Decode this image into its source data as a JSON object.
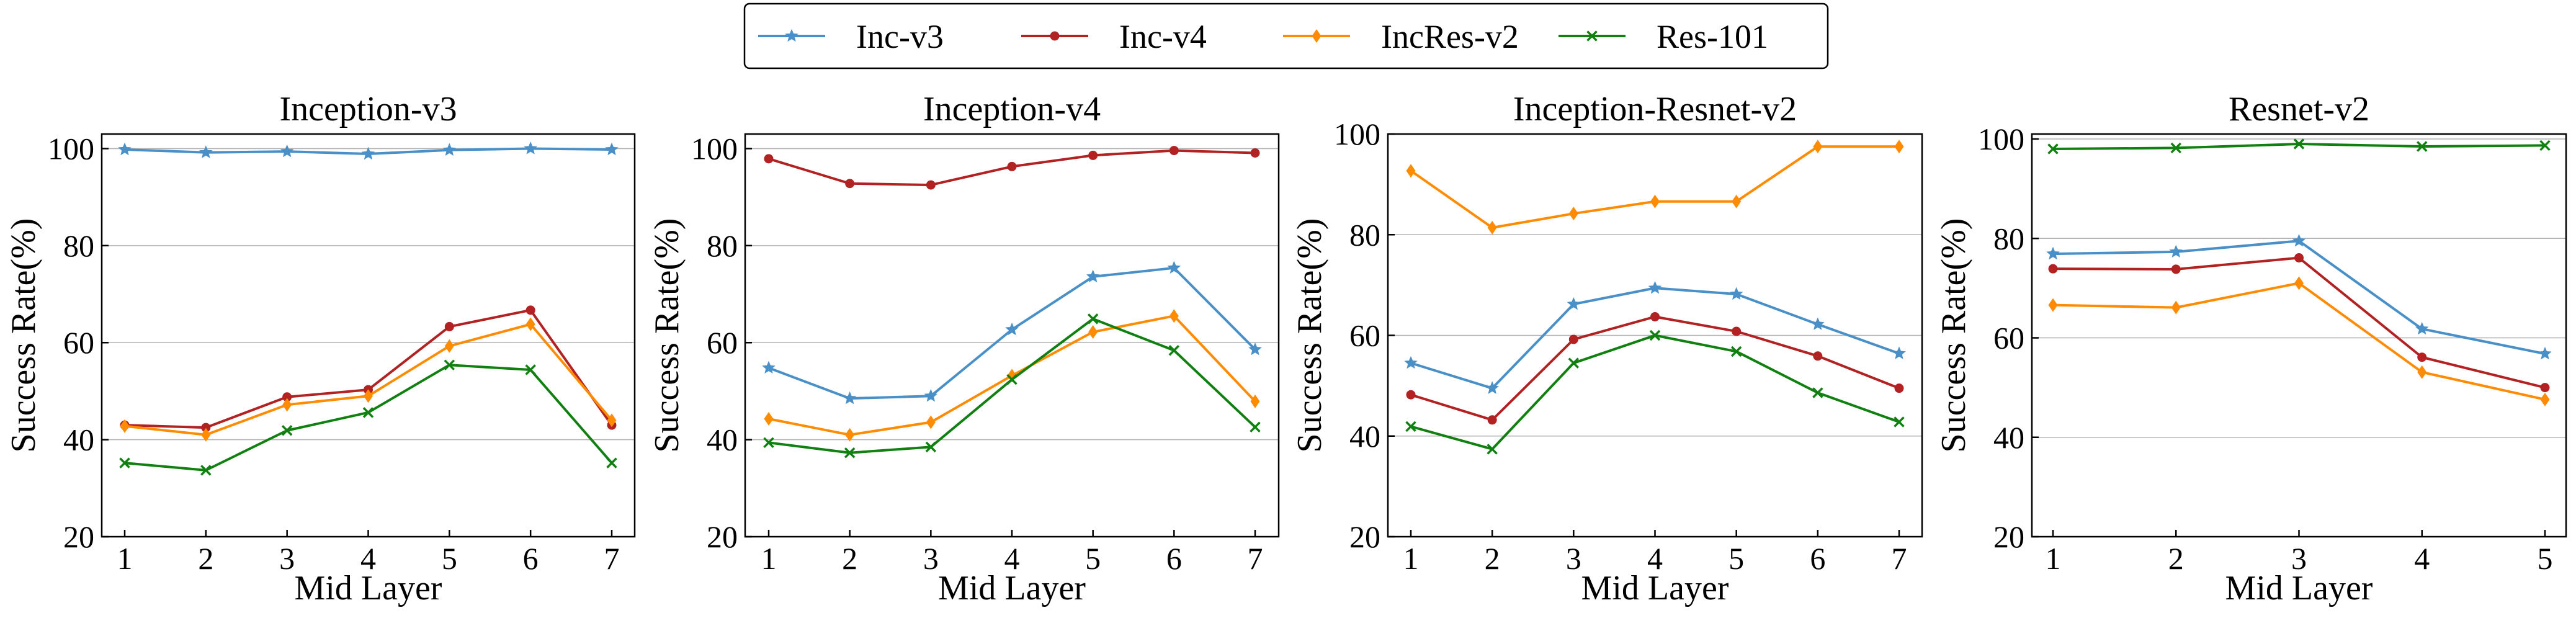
{
  "legend": {
    "entries": [
      {
        "name": "Inc-v3",
        "color": "#4a90c8",
        "marker": "star"
      },
      {
        "name": "Inc-v4",
        "color": "#b22222",
        "marker": "circle"
      },
      {
        "name": "IncRes-v2",
        "color": "#ff8c00",
        "marker": "diamond"
      },
      {
        "name": "Res-101",
        "color": "#108010",
        "marker": "x"
      }
    ]
  },
  "chart_data": [
    {
      "type": "line",
      "title": "Inception-v3",
      "xlabel": "Mid Layer",
      "ylabel": "Success Rate(%)",
      "x": [
        1,
        2,
        3,
        4,
        5,
        6,
        7
      ],
      "ylim": [
        20,
        103
      ],
      "yticks": [
        20,
        40,
        60,
        80,
        100
      ],
      "grid": "horizontal",
      "series": [
        {
          "name": "Inc-v3",
          "values": [
            99.8,
            99.2,
            99.4,
            98.9,
            99.7,
            100.0,
            99.8
          ]
        },
        {
          "name": "Inc-v4",
          "values": [
            43.0,
            42.5,
            48.8,
            50.3,
            63.3,
            66.7,
            43.0
          ]
        },
        {
          "name": "IncRes-v2",
          "values": [
            42.8,
            41.0,
            47.2,
            49.0,
            59.3,
            63.8,
            44.0
          ]
        },
        {
          "name": "Res-101",
          "values": [
            35.2,
            33.7,
            41.9,
            45.6,
            55.4,
            54.4,
            35.2
          ]
        }
      ]
    },
    {
      "type": "line",
      "title": "Inception-v4",
      "xlabel": "Mid Layer",
      "ylabel": "Success Rate(%)",
      "x": [
        1,
        2,
        3,
        4,
        5,
        6,
        7
      ],
      "ylim": [
        20,
        103
      ],
      "yticks": [
        20,
        40,
        60,
        80,
        100
      ],
      "grid": "horizontal",
      "series": [
        {
          "name": "Inc-v3",
          "values": [
            54.8,
            48.5,
            49.0,
            62.7,
            73.6,
            75.4,
            58.6
          ]
        },
        {
          "name": "Inc-v4",
          "values": [
            97.9,
            92.8,
            92.5,
            96.3,
            98.6,
            99.6,
            99.1
          ]
        },
        {
          "name": "IncRes-v2",
          "values": [
            44.3,
            41.0,
            43.6,
            53.2,
            62.2,
            65.5,
            47.9
          ]
        },
        {
          "name": "Res-101",
          "values": [
            39.4,
            37.3,
            38.5,
            52.4,
            64.9,
            58.4,
            42.6
          ]
        }
      ]
    },
    {
      "type": "line",
      "title": "Inception-Resnet-v2",
      "xlabel": "Mid Layer",
      "ylabel": "Success Rate(%)",
      "x": [
        1,
        2,
        3,
        4,
        5,
        6,
        7
      ],
      "ylim": [
        20,
        100
      ],
      "yticks": [
        20,
        40,
        60,
        80,
        100
      ],
      "grid": "horizontal",
      "series": [
        {
          "name": "Inc-v3",
          "values": [
            54.5,
            49.5,
            66.2,
            69.4,
            68.2,
            62.2,
            56.4
          ]
        },
        {
          "name": "Inc-v4",
          "values": [
            48.2,
            43.2,
            59.2,
            63.7,
            60.8,
            55.9,
            49.5
          ]
        },
        {
          "name": "IncRes-v2",
          "values": [
            92.7,
            81.4,
            84.2,
            86.6,
            86.6,
            97.5,
            97.5
          ]
        },
        {
          "name": "Res-101",
          "values": [
            41.9,
            37.4,
            54.5,
            60.0,
            56.8,
            48.6,
            42.8
          ]
        }
      ]
    },
    {
      "type": "line",
      "title": "Resnet-v2",
      "xlabel": "Mid Layer",
      "ylabel": "Success Rate(%)",
      "x": [
        1,
        2,
        3,
        4,
        5
      ],
      "ylim": [
        20,
        101
      ],
      "yticks": [
        20,
        40,
        60,
        80,
        100
      ],
      "grid": "horizontal",
      "series": [
        {
          "name": "Inc-v3",
          "values": [
            76.9,
            77.3,
            79.5,
            61.8,
            56.8
          ]
        },
        {
          "name": "Inc-v4",
          "values": [
            73.9,
            73.8,
            76.1,
            56.1,
            50.0
          ]
        },
        {
          "name": "IncRes-v2",
          "values": [
            66.6,
            66.1,
            71.0,
            53.1,
            47.6
          ]
        },
        {
          "name": "Res-101",
          "values": [
            98.0,
            98.2,
            99.0,
            98.5,
            98.7
          ]
        }
      ]
    }
  ]
}
